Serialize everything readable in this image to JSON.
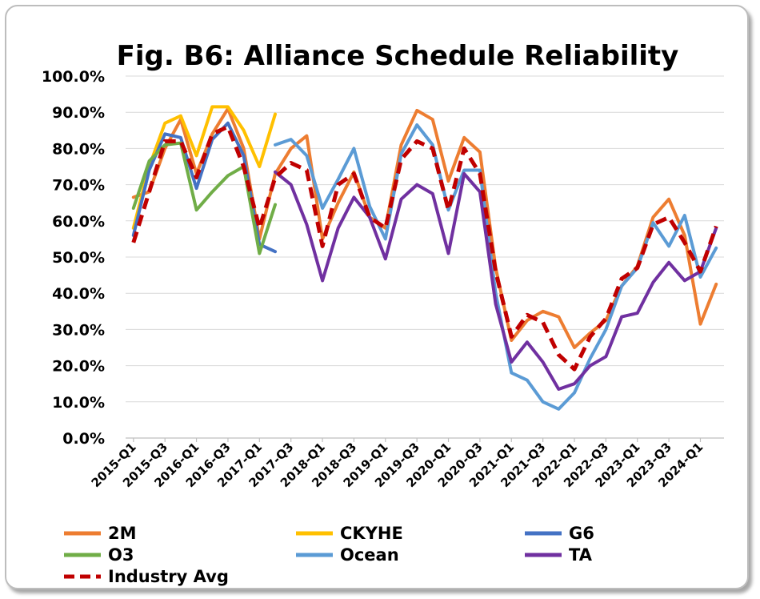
{
  "chart_data": {
    "type": "line",
    "title": "Fig. B6: Alliance Schedule Reliability",
    "xlabel": "",
    "ylabel": "",
    "ylim": [
      0,
      100
    ],
    "y_ticks": [
      "0.0%",
      "10.0%",
      "20.0%",
      "30.0%",
      "40.0%",
      "50.0%",
      "60.0%",
      "70.0%",
      "80.0%",
      "90.0%",
      "100.0%"
    ],
    "x_tick_labels": [
      "2015-Q1",
      "2015-Q3",
      "2016-Q1",
      "2016-Q3",
      "2017-Q1",
      "2017-Q3",
      "2018-Q1",
      "2018-Q3",
      "2019-Q1",
      "2019-Q3",
      "2020-Q1",
      "2020-Q3",
      "2021-Q1",
      "2021-Q3",
      "2022-Q1",
      "2022-Q3",
      "2023-Q1",
      "2023-Q3",
      "2024-Q1"
    ],
    "categories": [
      "2015-Q1",
      "2015-Q2",
      "2015-Q3",
      "2015-Q4",
      "2016-Q1",
      "2016-Q2",
      "2016-Q3",
      "2016-Q4",
      "2017-Q1",
      "2017-Q2",
      "2017-Q3",
      "2017-Q4",
      "2018-Q1",
      "2018-Q2",
      "2018-Q3",
      "2018-Q4",
      "2019-Q1",
      "2019-Q2",
      "2019-Q3",
      "2019-Q4",
      "2020-Q1",
      "2020-Q2",
      "2020-Q3",
      "2020-Q4",
      "2021-Q1",
      "2021-Q2",
      "2021-Q3",
      "2021-Q4",
      "2022-Q1",
      "2022-Q2",
      "2022-Q3",
      "2022-Q4",
      "2023-Q1",
      "2023-Q2",
      "2023-Q3",
      "2023-Q4",
      "2024-Q1",
      "2024-Q2"
    ],
    "grid": true,
    "legend_position": "bottom",
    "series": [
      {
        "name": "2M",
        "color": "#ED7D31",
        "dash": false,
        "values": [
          66.5,
          68,
          80,
          88,
          73,
          84,
          91,
          80,
          55,
          73,
          80,
          83.5,
          55,
          65,
          73.5,
          61,
          58,
          81,
          90.5,
          88,
          71,
          83,
          79,
          47,
          27,
          32.5,
          35,
          33.5,
          25,
          29,
          32.5,
          42,
          47.5,
          61,
          66,
          56,
          31.5,
          42.5
        ]
      },
      {
        "name": "CKYHE",
        "color": "#FFC000",
        "dash": false,
        "values": [
          58,
          75,
          87,
          89,
          78,
          91.5,
          91.5,
          85,
          75,
          89.5,
          null,
          null,
          null,
          null,
          null,
          null,
          null,
          null,
          null,
          null,
          null,
          null,
          null,
          null,
          null,
          null,
          null,
          null,
          null,
          null,
          null,
          null,
          null,
          null,
          null,
          null,
          null,
          null
        ]
      },
      {
        "name": "G6",
        "color": "#4472C4",
        "dash": false,
        "values": [
          56,
          74,
          84,
          83,
          69,
          82.5,
          87,
          78,
          53.5,
          51.5,
          null,
          null,
          null,
          null,
          null,
          null,
          null,
          null,
          null,
          null,
          null,
          null,
          null,
          null,
          null,
          null,
          null,
          null,
          null,
          null,
          null,
          null,
          null,
          null,
          null,
          null,
          null,
          null
        ]
      },
      {
        "name": "O3",
        "color": "#70AD47",
        "dash": false,
        "values": [
          63.5,
          76.5,
          81,
          81.5,
          63,
          68,
          72.5,
          75,
          51,
          64.5,
          null,
          null,
          null,
          null,
          null,
          null,
          null,
          null,
          null,
          null,
          null,
          null,
          null,
          null,
          null,
          null,
          null,
          null,
          null,
          null,
          null,
          null,
          null,
          null,
          null,
          null,
          null,
          null
        ]
      },
      {
        "name": "Ocean",
        "color": "#5B9BD5",
        "dash": false,
        "values": [
          null,
          null,
          null,
          null,
          null,
          null,
          null,
          null,
          null,
          81,
          82.5,
          78,
          63.5,
          71.5,
          80,
          64,
          55,
          78.5,
          86.5,
          81,
          63,
          74,
          74,
          40,
          18,
          16,
          10,
          8,
          12.5,
          22,
          30,
          42,
          47,
          59.5,
          53,
          61.5,
          44.5,
          52.5
        ]
      },
      {
        "name": "TA",
        "color": "#7030A0",
        "dash": false,
        "values": [
          null,
          null,
          null,
          null,
          null,
          null,
          null,
          null,
          null,
          73.5,
          70,
          59,
          43.5,
          58,
          66.5,
          61,
          49.5,
          66,
          70,
          67.5,
          51,
          73,
          68,
          37,
          21,
          26.5,
          21,
          13.5,
          15,
          20,
          22.5,
          33.5,
          34.5,
          43,
          48.5,
          43.5,
          46,
          58
        ]
      },
      {
        "name": "Industry Avg",
        "color": "#C00000",
        "dash": true,
        "values": [
          54,
          68,
          82,
          82,
          72,
          84,
          86,
          75,
          58,
          72,
          76,
          74,
          53,
          70,
          73,
          61,
          58,
          77,
          82,
          80,
          63,
          80,
          73,
          46,
          28,
          34,
          32,
          23,
          19,
          28,
          33,
          44,
          47,
          59,
          61,
          54,
          46,
          58.5
        ]
      }
    ]
  }
}
